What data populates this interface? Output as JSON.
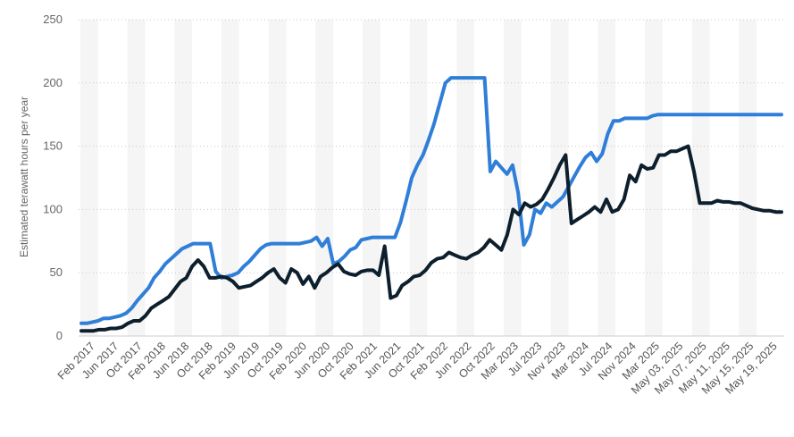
{
  "chart_data": {
    "type": "line",
    "title": "",
    "xlabel": "",
    "ylabel": "Estimated terawatt hours per year",
    "ylim": [
      0,
      250
    ],
    "yticks": [
      0,
      50,
      100,
      150,
      200,
      250
    ],
    "grid": "horizontal dotted",
    "legend": "none",
    "x_tick_labels": [
      "Feb 2017",
      "Jun 2017",
      "Oct 2017",
      "Feb 2018",
      "Jun 2018",
      "Oct 2018",
      "Feb 2019",
      "Jun 2019",
      "Oct 2019",
      "Feb 2020",
      "Jun 2020",
      "Oct 2020",
      "Feb 2021",
      "Jun 2021",
      "Oct 2021",
      "Feb 2022",
      "Jun 2022",
      "Oct 2022",
      "Mar 2023",
      "Jul 2023",
      "Nov 2023",
      "Mar 2024",
      "Jul 2024",
      "Nov 2024",
      "Mar 2025",
      "May 03, 2025",
      "May 07, 2025",
      "May 11, 2025",
      "May 15, 2025",
      "May 19, 2025"
    ],
    "series": [
      {
        "color": "#2f7ed8",
        "values": [
          10,
          10,
          11,
          12,
          14,
          14,
          15,
          16,
          18,
          22,
          28,
          33,
          38,
          46,
          51,
          57,
          61,
          65,
          69,
          71,
          73,
          73,
          73,
          73,
          51,
          46,
          47,
          48,
          50,
          55,
          59,
          64,
          69,
          72,
          73,
          73,
          73,
          73,
          73,
          73,
          74,
          75,
          78,
          71,
          77,
          57,
          59,
          63,
          68,
          70,
          76,
          77,
          78,
          78,
          78,
          78,
          78,
          90,
          107,
          125,
          135,
          143,
          155,
          168,
          184,
          200,
          204,
          204,
          204,
          204,
          204,
          204,
          204,
          130,
          138,
          133,
          128,
          135,
          113,
          72,
          80,
          100,
          97,
          105,
          102,
          106,
          110,
          118,
          126,
          134,
          141,
          145,
          138,
          144,
          160,
          170,
          170,
          172,
          172,
          172,
          172,
          172,
          174,
          175,
          175,
          175,
          175,
          175,
          175,
          175,
          175,
          175,
          175,
          175,
          175,
          175,
          175,
          175,
          175,
          175,
          175,
          175,
          175,
          175,
          175,
          175
        ]
      },
      {
        "color": "#0d1f2d",
        "values": [
          4,
          4,
          4,
          5,
          5,
          6,
          6,
          7,
          10,
          12,
          12,
          16,
          22,
          25,
          28,
          31,
          37,
          43,
          46,
          55,
          60,
          55,
          46,
          46,
          47,
          46,
          43,
          38,
          39,
          40,
          43,
          46,
          50,
          53,
          46,
          42,
          53,
          50,
          41,
          47,
          38,
          47,
          50,
          54,
          57,
          51,
          49,
          48,
          51,
          52,
          52,
          48,
          71,
          30,
          32,
          40,
          43,
          47,
          48,
          52,
          58,
          61,
          62,
          66,
          64,
          62,
          61,
          64,
          66,
          70,
          76,
          72,
          68,
          80,
          100,
          96,
          105,
          102,
          104,
          108,
          116,
          125,
          135,
          143,
          89,
          92,
          95,
          98,
          102,
          98,
          108,
          98,
          100,
          108,
          127,
          122,
          135,
          132,
          133,
          143,
          143,
          146,
          146,
          148,
          150,
          130,
          105,
          105,
          105,
          107,
          106,
          106,
          105,
          105,
          103,
          101,
          100,
          99,
          99,
          98,
          98
        ]
      }
    ]
  }
}
